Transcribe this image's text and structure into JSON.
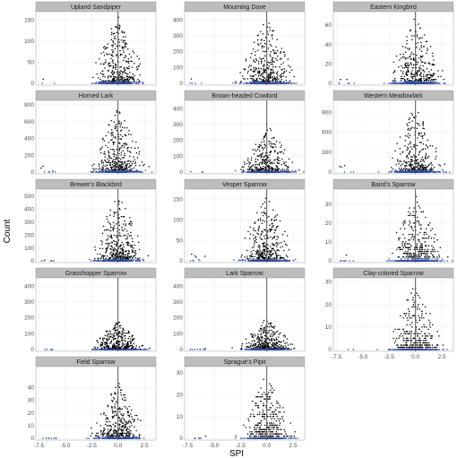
{
  "chart_data": {
    "type": "scatter",
    "xlabel": "SPI",
    "ylabel": "Count",
    "xlim": [
      -7.8,
      3.6
    ],
    "x_ticks": [
      "-7.5",
      "-5.0",
      "-2.5",
      "0.0",
      "2.5"
    ],
    "x_tick_values": [
      -7.5,
      -5.0,
      -2.5,
      0.0,
      2.5
    ],
    "vertical_reference_line_x": 0,
    "grid": true,
    "point_color": "#000000",
    "low_count_color": "#2f4b9c",
    "panels": [
      {
        "title": "Upland Sandpiper",
        "ylim": [
          0,
          165
        ],
        "y_ticks": [
          0,
          50,
          100,
          150
        ],
        "max_count": 160,
        "spread": 0.9
      },
      {
        "title": "Mourning Dove",
        "ylim": [
          0,
          440
        ],
        "y_ticks": [
          0,
          100,
          200,
          300,
          400
        ],
        "max_count": 420,
        "spread": 1.0
      },
      {
        "title": "Eastern Kingbird",
        "ylim": [
          0,
          72
        ],
        "y_ticks": [
          0,
          20,
          40,
          60
        ],
        "max_count": 70,
        "spread": 1.0
      },
      {
        "title": "Horned Lark",
        "ylim": [
          0,
          830
        ],
        "y_ticks": [
          0,
          200,
          400,
          600,
          800
        ],
        "max_count": 780,
        "spread": 1.0
      },
      {
        "title": "Brown-headed Cowbird",
        "ylim": [
          0,
          440
        ],
        "y_ticks": [
          0,
          100,
          200,
          300,
          400
        ],
        "max_count": 310,
        "spread": 1.0
      },
      {
        "title": "Western Meadowlark",
        "ylim": [
          0,
          1050
        ],
        "y_ticks": [
          0,
          300,
          600,
          900
        ],
        "max_count": 1000,
        "spread": 1.0
      },
      {
        "title": "Brewer's Blackbird",
        "ylim": [
          0,
          540
        ],
        "y_ticks": [
          0,
          100,
          200,
          300,
          400,
          500
        ],
        "max_count": 520,
        "spread": 0.9
      },
      {
        "title": "Vesper Sparrow",
        "ylim": [
          0,
          170
        ],
        "y_ticks": [
          0,
          50,
          100,
          150
        ],
        "max_count": 165,
        "spread": 1.0
      },
      {
        "title": "Baird's Sparrow",
        "ylim": [
          0,
          37
        ],
        "y_ticks": [
          0,
          10,
          20,
          30
        ],
        "max_count": 36,
        "spread": 1.0
      },
      {
        "title": "Grasshopper Sparrow",
        "ylim": [
          0,
          440
        ],
        "y_ticks": [
          0,
          100,
          200,
          300,
          400
        ],
        "max_count": 180,
        "spread": 1.0
      },
      {
        "title": "Lark Sparrow",
        "ylim": [
          0,
          440
        ],
        "y_ticks": [
          0,
          100,
          200,
          300,
          400
        ],
        "max_count": 200,
        "spread": 1.0
      },
      {
        "title": "Clay-colored Sparrow",
        "ylim": [
          0,
          31
        ],
        "y_ticks": [
          0,
          10,
          20,
          30
        ],
        "max_count": 30,
        "spread": 1.0
      },
      {
        "title": "Field Sparrow",
        "ylim": [
          0,
          55
        ],
        "y_ticks": [
          0,
          10,
          20,
          30,
          40
        ],
        "max_count": 45,
        "spread": 0.9
      },
      {
        "title": "Sprague's Pipit",
        "ylim": [
          0,
          32
        ],
        "y_ticks": [
          0,
          10,
          20,
          30
        ],
        "max_count": 30,
        "spread": 0.9
      }
    ]
  }
}
